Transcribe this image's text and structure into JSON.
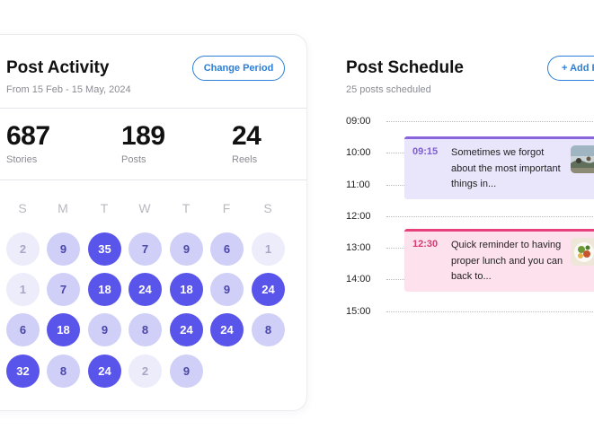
{
  "activity": {
    "title": "Post Activity",
    "period": "From 15 Feb - 15 May, 2024",
    "change_period_label": "Change Period",
    "stats": [
      {
        "value": "687",
        "label": "Stories"
      },
      {
        "value": "189",
        "label": "Posts"
      },
      {
        "value": "24",
        "label": "Reels"
      }
    ],
    "weekdays": [
      "S",
      "M",
      "T",
      "W",
      "T",
      "F",
      "S"
    ],
    "days": [
      {
        "value": "2",
        "level": 1
      },
      {
        "value": "9",
        "level": 2
      },
      {
        "value": "35",
        "level": 3
      },
      {
        "value": "7",
        "level": 2
      },
      {
        "value": "9",
        "level": 2
      },
      {
        "value": "6",
        "level": 2
      },
      {
        "value": "1",
        "level": 1
      },
      {
        "value": "1",
        "level": 1
      },
      {
        "value": "7",
        "level": 2
      },
      {
        "value": "18",
        "level": 3
      },
      {
        "value": "24",
        "level": 3
      },
      {
        "value": "18",
        "level": 3
      },
      {
        "value": "9",
        "level": 2
      },
      {
        "value": "24",
        "level": 3
      },
      {
        "value": "6",
        "level": 2
      },
      {
        "value": "18",
        "level": 3
      },
      {
        "value": "9",
        "level": 2
      },
      {
        "value": "8",
        "level": 2
      },
      {
        "value": "24",
        "level": 3
      },
      {
        "value": "24",
        "level": 3
      },
      {
        "value": "8",
        "level": 2
      },
      {
        "value": "32",
        "level": 3
      },
      {
        "value": "8",
        "level": 2
      },
      {
        "value": "24",
        "level": 3
      },
      {
        "value": "2",
        "level": 1
      },
      {
        "value": "9",
        "level": 2
      }
    ]
  },
  "schedule": {
    "title": "Post Schedule",
    "subtitle": "25 posts scheduled",
    "add_label": "+ Add Post",
    "times": [
      "09:00",
      "10:00",
      "11:00",
      "12:00",
      "13:00",
      "14:00",
      "15:00"
    ],
    "events": [
      {
        "time": "09:15",
        "text": "Sometimes we forgot about the most important things in...",
        "thumb_icon": "landscape-photo-icon"
      },
      {
        "time": "12:30",
        "text": "Quick reminder to having proper lunch and you can back to...",
        "thumb_icon": "food-photo-icon"
      }
    ]
  },
  "colors": {
    "accent": "#5a55ea",
    "accent_light": "#cfcff8",
    "accent_faint": "#ececfa",
    "button_blue": "#2b7fd6",
    "event_purple": "#e9e6fc",
    "event_pink": "#fde1ed"
  }
}
